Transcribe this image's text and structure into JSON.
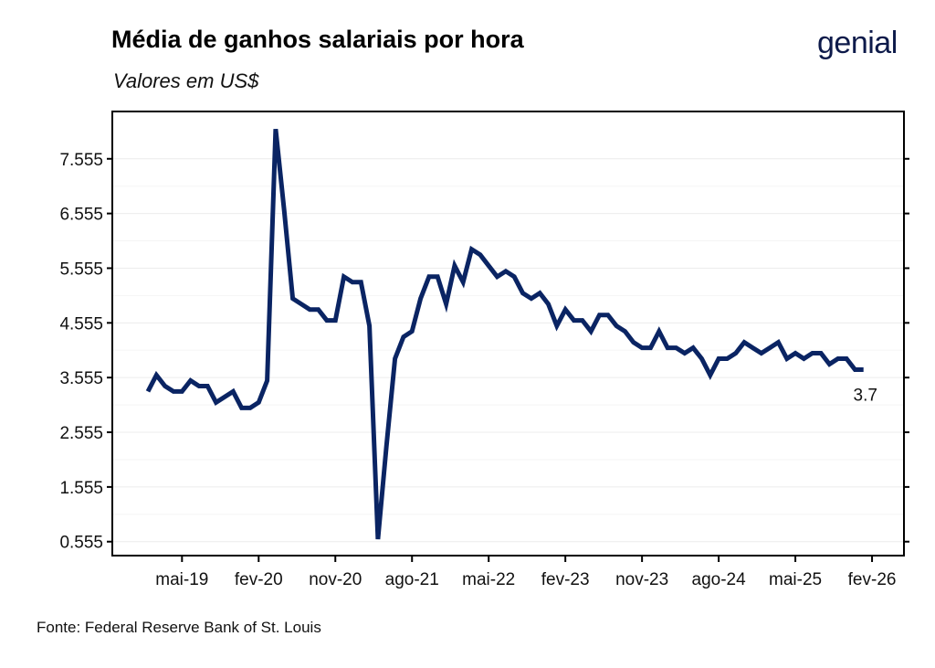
{
  "title": "Média de ganhos salariais por hora",
  "subtitle": "Valores em US$",
  "logo": "genial",
  "source": "Fonte: Federal Reserve Bank of St. Louis",
  "colors": {
    "line": "#0a2463",
    "grid": "#ececec",
    "axis": "#000000"
  },
  "chart_data": {
    "type": "line",
    "title": "Média de ganhos salariais por hora",
    "subtitle": "Valores em US$",
    "xlabel": "",
    "ylabel": "",
    "x_start": "jan-19",
    "x_step": "month",
    "ylim": [
      0.3,
      8.42
    ],
    "yticks": [
      0.555,
      1.555,
      2.555,
      3.555,
      4.555,
      5.555,
      6.555,
      7.555
    ],
    "ytick_labels": [
      "0.555",
      "1.555",
      "2.555",
      "3.555",
      "4.555",
      "5.555",
      "6.555",
      "7.555"
    ],
    "xtick_labels": [
      "mai-19",
      "fev-20",
      "nov-20",
      "ago-21",
      "mai-22",
      "fev-23",
      "nov-23",
      "ago-24",
      "mai-25",
      "fev-26"
    ],
    "xtick_month_index": [
      4,
      13,
      22,
      31,
      40,
      49,
      58,
      67,
      76,
      85
    ],
    "grid": true,
    "last_label": "3.7",
    "series": [
      {
        "name": "Média de ganhos salariais por hora",
        "values": [
          3.3,
          3.6,
          3.4,
          3.3,
          3.3,
          3.5,
          3.4,
          3.4,
          3.1,
          3.2,
          3.3,
          3.0,
          3.0,
          3.1,
          3.5,
          8.1,
          6.6,
          5.0,
          4.9,
          4.8,
          4.8,
          4.6,
          4.6,
          5.4,
          5.3,
          5.3,
          4.5,
          0.6,
          2.3,
          3.9,
          4.3,
          4.4,
          5.0,
          5.4,
          5.4,
          4.9,
          5.6,
          5.3,
          5.9,
          5.8,
          5.6,
          5.4,
          5.5,
          5.4,
          5.1,
          5.0,
          5.1,
          4.9,
          4.5,
          4.8,
          4.6,
          4.6,
          4.4,
          4.7,
          4.7,
          4.5,
          4.4,
          4.2,
          4.1,
          4.1,
          4.4,
          4.1,
          4.1,
          4.0,
          4.1,
          3.9,
          3.6,
          3.9,
          3.9,
          4.0,
          4.2,
          4.1,
          4.0,
          4.1,
          4.2,
          3.9,
          4.0,
          3.9,
          4.0,
          4.0,
          3.8,
          3.9,
          3.9,
          3.7,
          3.7
        ]
      }
    ]
  }
}
